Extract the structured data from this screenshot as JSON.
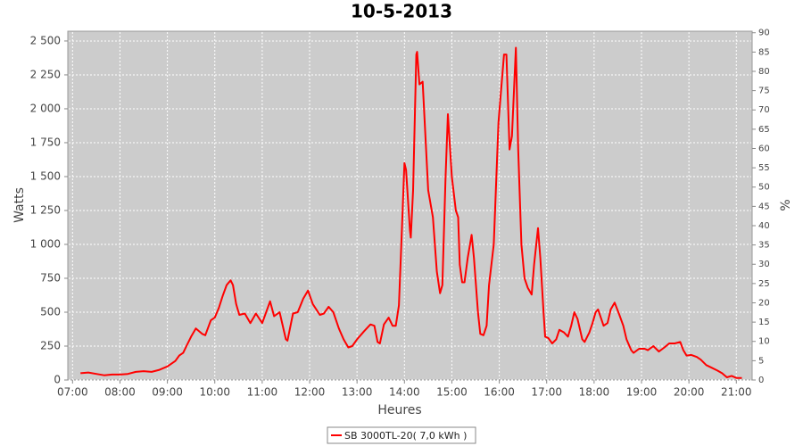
{
  "chart_data": {
    "type": "line",
    "title": "10-5-2013",
    "x_label": "Heures",
    "y_label": "Watts",
    "y2_label": "%",
    "x": [
      "07:10",
      "07:20",
      "07:30",
      "07:40",
      "07:50",
      "08:00",
      "08:10",
      "08:20",
      "08:30",
      "08:40",
      "08:50",
      "09:00",
      "09:10",
      "09:15",
      "09:20",
      "09:25",
      "09:30",
      "09:36",
      "09:44",
      "09:48",
      "09:55",
      "10:00",
      "10:05",
      "10:10",
      "10:15",
      "10:20",
      "10:23",
      "10:27",
      "10:31",
      "10:38",
      "10:45",
      "10:52",
      "11:00",
      "11:10",
      "11:15",
      "11:22",
      "11:30",
      "11:32",
      "11:39",
      "11:45",
      "11:52",
      "11:58",
      "12:04",
      "12:13",
      "12:18",
      "12:24",
      "12:30",
      "12:37",
      "12:43",
      "12:49",
      "12:54",
      "13:00",
      "13:09",
      "13:17",
      "13:22",
      "13:26",
      "13:29",
      "13:34",
      "13:40",
      "13:45",
      "13:49",
      "13:53",
      "13:56",
      "14:00",
      "14:02",
      "14:07",
      "14:08",
      "14:11",
      "14:15",
      "14:16",
      "14:19",
      "14:23",
      "14:30",
      "14:36",
      "14:41",
      "14:45",
      "14:48",
      "14:52",
      "14:55",
      "15:00",
      "15:05",
      "15:08",
      "15:10",
      "15:13",
      "15:16",
      "15:20",
      "15:25",
      "15:28",
      "15:33",
      "15:36",
      "15:40",
      "15:44",
      "15:47",
      "15:53",
      "15:59",
      "16:06",
      "16:09",
      "16:13",
      "16:16",
      "16:21",
      "16:24",
      "16:28",
      "16:32",
      "16:36",
      "16:41",
      "16:44",
      "16:49",
      "16:52",
      "16:56",
      "16:58",
      "17:02",
      "17:07",
      "17:12",
      "17:16",
      "17:22",
      "17:27",
      "17:31",
      "17:35",
      "17:39",
      "17:45",
      "17:48",
      "17:54",
      "17:58",
      "18:02",
      "18:05",
      "18:12",
      "18:17",
      "18:21",
      "18:26",
      "18:32",
      "18:37",
      "18:41",
      "18:47",
      "18:50",
      "18:57",
      "19:04",
      "19:08",
      "19:15",
      "19:22",
      "19:29",
      "19:35",
      "19:42",
      "19:49",
      "19:53",
      "19:57",
      "20:03",
      "20:10",
      "20:15",
      "20:22",
      "20:29",
      "20:36",
      "20:42",
      "20:48",
      "20:54",
      "21:00",
      "21:07"
    ],
    "series": [
      {
        "name": "SB 3000TL-20( 7,0 kWh )",
        "color": "#ff0000",
        "values": [
          50,
          55,
          45,
          35,
          40,
          40,
          45,
          60,
          65,
          60,
          75,
          100,
          140,
          180,
          200,
          260,
          320,
          380,
          340,
          330,
          440,
          460,
          530,
          620,
          700,
          735,
          700,
          560,
          480,
          490,
          420,
          490,
          420,
          580,
          470,
          500,
          300,
          290,
          490,
          500,
          600,
          660,
          560,
          480,
          490,
          540,
          500,
          380,
          300,
          240,
          250,
          300,
          360,
          410,
          400,
          280,
          270,
          410,
          460,
          400,
          400,
          550,
          1000,
          1600,
          1550,
          1100,
          1050,
          1400,
          2400,
          2420,
          2180,
          2200,
          1400,
          1200,
          800,
          640,
          700,
          1500,
          1960,
          1500,
          1250,
          1200,
          850,
          720,
          720,
          900,
          1070,
          900,
          500,
          340,
          330,
          400,
          700,
          1000,
          1900,
          2400,
          2400,
          1700,
          1800,
          2450,
          1700,
          1000,
          750,
          680,
          630,
          850,
          1120,
          900,
          500,
          320,
          310,
          270,
          300,
          370,
          350,
          320,
          400,
          500,
          450,
          300,
          280,
          350,
          420,
          500,
          520,
          400,
          420,
          520,
          570,
          480,
          400,
          300,
          220,
          200,
          230,
          230,
          220,
          250,
          210,
          240,
          270,
          270,
          280,
          220,
          180,
          185,
          170,
          150,
          110,
          90,
          70,
          50,
          20,
          30,
          15,
          15
        ]
      }
    ],
    "xlim": [
      "06:54",
      "21:20"
    ],
    "xticks": [
      "07:00",
      "08:00",
      "09:00",
      "10:00",
      "11:00",
      "12:00",
      "13:00",
      "14:00",
      "15:00",
      "16:00",
      "17:00",
      "18:00",
      "19:00",
      "20:00",
      "21:00"
    ],
    "ylim": [
      0,
      2572
    ],
    "yticks": [
      0,
      250,
      500,
      750,
      {
        "value": 1000,
        "label": "1 000"
      },
      {
        "value": 1250,
        "label": "1 250"
      },
      {
        "value": 1500,
        "label": "1 500"
      },
      {
        "value": 1750,
        "label": "1 750"
      },
      {
        "value": 2000,
        "label": "2 000"
      },
      {
        "value": 2250,
        "label": "2 250"
      },
      {
        "value": 2500,
        "label": "2 500"
      }
    ],
    "y2lim": [
      0,
      90.4
    ],
    "y2ticks": [
      0,
      5,
      10,
      15,
      20,
      25,
      30,
      35,
      40,
      45,
      50,
      55,
      60,
      65,
      70,
      75,
      80,
      85,
      90
    ],
    "grid": true,
    "legend": "bottom"
  }
}
